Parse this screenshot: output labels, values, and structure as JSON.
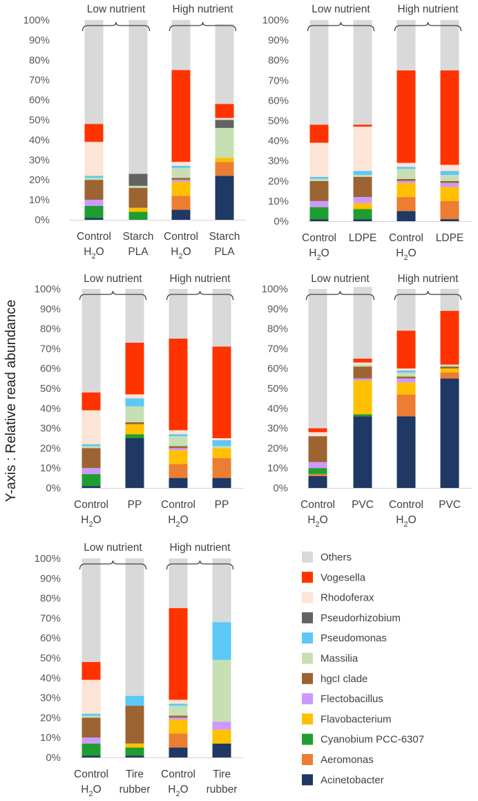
{
  "figure": {
    "y_axis_label": "Y-axis : Relative read abundance"
  },
  "legend": [
    {
      "name": "Others",
      "color": "#d9d9d9"
    },
    {
      "name": "Vogesella",
      "color": "#ff3300"
    },
    {
      "name": "Rhodoferax",
      "color": "#fce4d6"
    },
    {
      "name": "Pseudorhizobium",
      "color": "#636363"
    },
    {
      "name": "Pseudomonas",
      "color": "#5bc8f5"
    },
    {
      "name": "Massilia",
      "color": "#c6e0b4"
    },
    {
      "name": "hgcI clade",
      "color": "#9c6432"
    },
    {
      "name": "Flectobacillus",
      "color": "#cc99ff"
    },
    {
      "name": "Flavobacterium",
      "color": "#ffc000"
    },
    {
      "name": "Cyanobium PCC-6307",
      "color": "#1e9e2e"
    },
    {
      "name": "Aeromonas",
      "color": "#ed7d31"
    },
    {
      "name": "Acinetobacter",
      "color": "#1f3864"
    }
  ],
  "chart_data": [
    {
      "type": "bar",
      "stacked": true,
      "panel": "Starch PLA",
      "yticks": [
        "0%",
        "10%",
        "20%",
        "30%",
        "40%",
        "50%",
        "60%",
        "70%",
        "80%",
        "90%",
        "100%"
      ],
      "groups": [
        "Low nutrient",
        "High nutrient"
      ],
      "categories": [
        [
          "Control",
          "H2O"
        ],
        [
          "Starch",
          "PLA"
        ],
        [
          "Control",
          "H2O"
        ],
        [
          "Starch",
          "PLA"
        ]
      ],
      "series": [
        {
          "name": "Acinetobacter",
          "values": [
            1,
            0,
            5,
            22
          ]
        },
        {
          "name": "Aeromonas",
          "values": [
            0,
            0,
            7,
            7
          ]
        },
        {
          "name": "Cyanobium PCC-6307",
          "values": [
            6,
            4,
            0,
            0
          ]
        },
        {
          "name": "Flavobacterium",
          "values": [
            0,
            2,
            7,
            2
          ]
        },
        {
          "name": "Flectobacillus",
          "values": [
            3,
            0,
            1,
            0
          ]
        },
        {
          "name": "hgcI clade",
          "values": [
            10,
            10,
            1,
            0
          ]
        },
        {
          "name": "Massilia",
          "values": [
            1,
            1,
            5,
            15
          ]
        },
        {
          "name": "Pseudomonas",
          "values": [
            1,
            0,
            1,
            0
          ]
        },
        {
          "name": "Pseudorhizobium",
          "values": [
            0,
            6,
            0,
            4
          ]
        },
        {
          "name": "Rhodoferax",
          "values": [
            17,
            0,
            2,
            1
          ]
        },
        {
          "name": "Vogesella",
          "values": [
            9,
            0,
            46,
            7
          ]
        },
        {
          "name": "Others",
          "values": [
            52,
            77,
            25,
            40
          ]
        }
      ]
    },
    {
      "type": "bar",
      "stacked": true,
      "panel": "LDPE",
      "yticks": [
        "0%",
        "10%",
        "20%",
        "30%",
        "40%",
        "50%",
        "60%",
        "70%",
        "80%",
        "90%",
        "100%"
      ],
      "groups": [
        "Low nutrient",
        "High nutrient"
      ],
      "categories": [
        [
          "Control",
          "H2O"
        ],
        [
          "LDPE",
          ""
        ],
        [
          "Control",
          "H2O"
        ],
        [
          "LDPE",
          ""
        ]
      ],
      "series": [
        {
          "name": "Acinetobacter",
          "values": [
            1,
            1,
            5,
            1
          ]
        },
        {
          "name": "Aeromonas",
          "values": [
            0,
            0,
            7,
            9
          ]
        },
        {
          "name": "Cyanobium PCC-6307",
          "values": [
            6,
            5,
            0,
            0
          ]
        },
        {
          "name": "Flavobacterium",
          "values": [
            0,
            3,
            7,
            7
          ]
        },
        {
          "name": "Flectobacillus",
          "values": [
            3,
            3,
            1,
            2
          ]
        },
        {
          "name": "hgcI clade",
          "values": [
            10,
            10,
            1,
            1
          ]
        },
        {
          "name": "Massilia",
          "values": [
            1,
            1,
            5,
            3
          ]
        },
        {
          "name": "Pseudomonas",
          "values": [
            1,
            2,
            1,
            2
          ]
        },
        {
          "name": "Pseudorhizobium",
          "values": [
            0,
            0,
            0,
            0
          ]
        },
        {
          "name": "Rhodoferax",
          "values": [
            17,
            22,
            2,
            3
          ]
        },
        {
          "name": "Vogesella",
          "values": [
            9,
            1,
            46,
            47
          ]
        },
        {
          "name": "Others",
          "values": [
            52,
            52,
            25,
            25
          ]
        }
      ]
    },
    {
      "type": "bar",
      "stacked": true,
      "panel": "PP",
      "yticks": [
        "0%",
        "10%",
        "20%",
        "30%",
        "40%",
        "50%",
        "60%",
        "70%",
        "80%",
        "90%",
        "100%"
      ],
      "groups": [
        "Low nutrient",
        "High nutrient"
      ],
      "categories": [
        [
          "Control",
          "H2O"
        ],
        [
          "PP",
          ""
        ],
        [
          "Control",
          "H2O"
        ],
        [
          "PP",
          ""
        ]
      ],
      "series": [
        {
          "name": "Acinetobacter",
          "values": [
            1,
            25,
            5,
            5
          ]
        },
        {
          "name": "Aeromonas",
          "values": [
            0,
            0,
            7,
            10
          ]
        },
        {
          "name": "Cyanobium PCC-6307",
          "values": [
            6,
            2,
            0,
            0
          ]
        },
        {
          "name": "Flavobacterium",
          "values": [
            0,
            5,
            7,
            5
          ]
        },
        {
          "name": "Flectobacillus",
          "values": [
            3,
            0,
            1,
            0
          ]
        },
        {
          "name": "hgcI clade",
          "values": [
            10,
            1,
            1,
            0
          ]
        },
        {
          "name": "Massilia",
          "values": [
            1,
            8,
            5,
            1
          ]
        },
        {
          "name": "Pseudomonas",
          "values": [
            1,
            4,
            1,
            3
          ]
        },
        {
          "name": "Pseudorhizobium",
          "values": [
            0,
            0,
            0,
            0
          ]
        },
        {
          "name": "Rhodoferax",
          "values": [
            17,
            2,
            2,
            1
          ]
        },
        {
          "name": "Vogesella",
          "values": [
            9,
            26,
            46,
            46
          ]
        },
        {
          "name": "Others",
          "values": [
            52,
            27,
            25,
            29
          ]
        }
      ]
    },
    {
      "type": "bar",
      "stacked": true,
      "panel": "PVC",
      "yticks": [
        "0%",
        "10%",
        "20%",
        "30%",
        "40%",
        "50%",
        "60%",
        "70%",
        "80%",
        "90%",
        "100%"
      ],
      "groups": [
        "Low nutrient",
        "High nutrient"
      ],
      "categories": [
        [
          "Control",
          "H2O"
        ],
        [
          "PVC",
          ""
        ],
        [
          "Control",
          "H2O"
        ],
        [
          "PVC",
          ""
        ]
      ],
      "series": [
        {
          "name": "Acinetobacter",
          "values": [
            6,
            36,
            36,
            55
          ]
        },
        {
          "name": "Aeromonas",
          "values": [
            1,
            0,
            11,
            3
          ]
        },
        {
          "name": "Cyanobium PCC-6307",
          "values": [
            3,
            1,
            0,
            0
          ]
        },
        {
          "name": "Flavobacterium",
          "values": [
            0,
            17,
            6,
            2
          ]
        },
        {
          "name": "Flectobacillus",
          "values": [
            3,
            1,
            2,
            0
          ]
        },
        {
          "name": "hgcI clade",
          "values": [
            13,
            6,
            1,
            1
          ]
        },
        {
          "name": "Massilia",
          "values": [
            0,
            1,
            2,
            1
          ]
        },
        {
          "name": "Pseudomonas",
          "values": [
            0,
            0,
            1,
            0
          ]
        },
        {
          "name": "Pseudorhizobium",
          "values": [
            0,
            0,
            0,
            0
          ]
        },
        {
          "name": "Rhodoferax",
          "values": [
            2,
            1,
            1,
            0
          ]
        },
        {
          "name": "Vogesella",
          "values": [
            2,
            2,
            19,
            27
          ]
        },
        {
          "name": "Others",
          "values": [
            70,
            36,
            21,
            11
          ]
        }
      ]
    },
    {
      "type": "bar",
      "stacked": true,
      "panel": "Tire rubber",
      "yticks": [
        "0%",
        "10%",
        "20%",
        "30%",
        "40%",
        "50%",
        "60%",
        "70%",
        "80%",
        "90%",
        "100%"
      ],
      "groups": [
        "Low nutrient",
        "High nutrient"
      ],
      "categories": [
        [
          "Control",
          "H2O"
        ],
        [
          "Tire",
          "rubber"
        ],
        [
          "Control",
          "H2O"
        ],
        [
          "Tire",
          "rubber"
        ]
      ],
      "series": [
        {
          "name": "Acinetobacter",
          "values": [
            1,
            1,
            5,
            7
          ]
        },
        {
          "name": "Aeromonas",
          "values": [
            0,
            0,
            7,
            0
          ]
        },
        {
          "name": "Cyanobium PCC-6307",
          "values": [
            6,
            4,
            0,
            0
          ]
        },
        {
          "name": "Flavobacterium",
          "values": [
            0,
            2,
            7,
            7
          ]
        },
        {
          "name": "Flectobacillus",
          "values": [
            3,
            0,
            1,
            4
          ]
        },
        {
          "name": "hgcI clade",
          "values": [
            10,
            19,
            1,
            0
          ]
        },
        {
          "name": "Massilia",
          "values": [
            1,
            0,
            5,
            31
          ]
        },
        {
          "name": "Pseudomonas",
          "values": [
            1,
            5,
            1,
            19
          ]
        },
        {
          "name": "Pseudorhizobium",
          "values": [
            0,
            0,
            0,
            0
          ]
        },
        {
          "name": "Rhodoferax",
          "values": [
            17,
            0,
            2,
            0
          ]
        },
        {
          "name": "Vogesella",
          "values": [
            9,
            0,
            46,
            0
          ]
        },
        {
          "name": "Others",
          "values": [
            52,
            69,
            25,
            32
          ]
        }
      ]
    }
  ]
}
